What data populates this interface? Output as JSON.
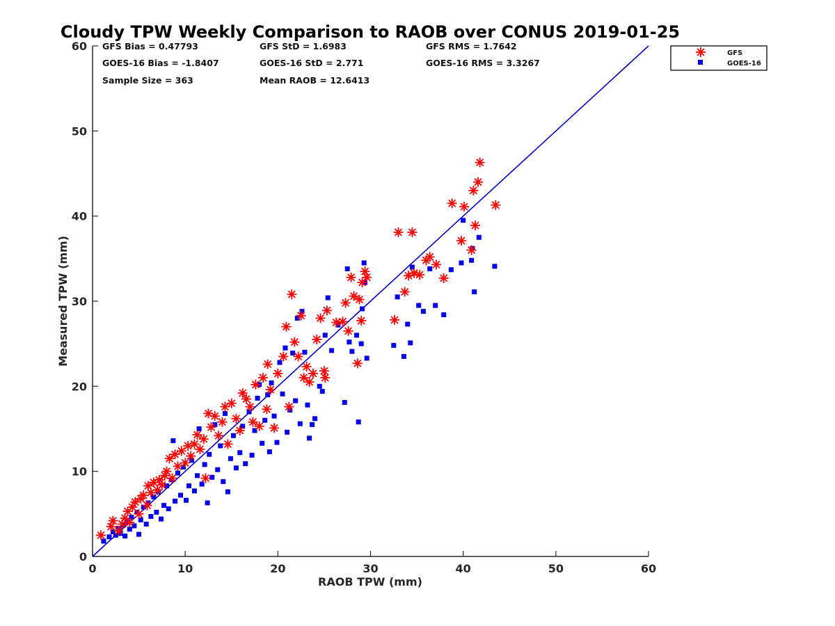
{
  "chart_data": {
    "type": "scatter",
    "title": "Cloudy TPW Weekly Comparison to RAOB over CONUS 2019-01-25",
    "xlabel": "RAOB TPW (mm)",
    "ylabel": "Measured TPW (mm)",
    "xlim": [
      0,
      60
    ],
    "ylim": [
      0,
      60
    ],
    "xticks": [
      "0",
      "10",
      "20",
      "30",
      "40",
      "50",
      "60"
    ],
    "yticks": [
      "0",
      "10",
      "20",
      "30",
      "40",
      "50",
      "60"
    ],
    "grid": false,
    "legend_position": "top-right-outside",
    "stats": {
      "gfs_bias": "GFS Bias = 0.47793",
      "gfs_std": "GFS StD = 1.6983",
      "gfs_rms": "GFS RMS = 1.7642",
      "goes_bias": "GOES-16 Bias = -1.8407",
      "goes_std": "GOES-16 StD = 2.771",
      "goes_rms": "GOES-16 RMS = 3.3267",
      "sample_size": "Sample Size = 363",
      "mean_raob": "Mean RAOB = 12.6413"
    },
    "reference_line": {
      "x": [
        0,
        60
      ],
      "y": [
        0,
        60
      ],
      "color": "#0000cc"
    },
    "series": [
      {
        "name": "GFS",
        "marker": "asterisk",
        "color": "#ff0000",
        "points": [
          [
            0.9,
            2.5
          ],
          [
            2.0,
            3.5
          ],
          [
            2.2,
            4.2
          ],
          [
            2.8,
            3.0
          ],
          [
            3.2,
            3.8
          ],
          [
            3.5,
            4.5
          ],
          [
            3.8,
            5.3
          ],
          [
            4.0,
            4.0
          ],
          [
            4.3,
            5.8
          ],
          [
            4.6,
            6.4
          ],
          [
            5.0,
            5.0
          ],
          [
            5.2,
            6.8
          ],
          [
            5.5,
            7.2
          ],
          [
            5.9,
            6.0
          ],
          [
            6.0,
            8.3
          ],
          [
            6.3,
            7.5
          ],
          [
            6.6,
            8.7
          ],
          [
            7.0,
            7.8
          ],
          [
            7.2,
            9.0
          ],
          [
            7.5,
            8.4
          ],
          [
            7.8,
            9.5
          ],
          [
            8.0,
            10.0
          ],
          [
            8.3,
            11.5
          ],
          [
            8.6,
            9.2
          ],
          [
            8.9,
            12.0
          ],
          [
            9.2,
            10.6
          ],
          [
            9.6,
            12.4
          ],
          [
            10.0,
            11.0
          ],
          [
            10.3,
            13.0
          ],
          [
            10.6,
            11.8
          ],
          [
            11.0,
            13.2
          ],
          [
            11.3,
            14.3
          ],
          [
            11.6,
            12.6
          ],
          [
            12.0,
            13.8
          ],
          [
            12.2,
            9.2
          ],
          [
            12.5,
            16.8
          ],
          [
            12.8,
            15.2
          ],
          [
            13.2,
            16.5
          ],
          [
            13.6,
            14.2
          ],
          [
            14.0,
            15.8
          ],
          [
            14.3,
            17.6
          ],
          [
            14.6,
            13.2
          ],
          [
            15.0,
            18.0
          ],
          [
            15.5,
            16.2
          ],
          [
            15.9,
            14.8
          ],
          [
            16.2,
            19.2
          ],
          [
            16.6,
            18.5
          ],
          [
            17.0,
            17.6
          ],
          [
            17.3,
            15.8
          ],
          [
            17.6,
            20.2
          ],
          [
            18.0,
            15.3
          ],
          [
            18.4,
            21.0
          ],
          [
            18.8,
            17.3
          ],
          [
            18.9,
            22.6
          ],
          [
            19.2,
            19.6
          ],
          [
            19.6,
            15.1
          ],
          [
            20.0,
            21.5
          ],
          [
            20.6,
            23.5
          ],
          [
            20.9,
            27.0
          ],
          [
            21.2,
            17.6
          ],
          [
            21.5,
            30.8
          ],
          [
            21.8,
            25.2
          ],
          [
            22.2,
            23.5
          ],
          [
            22.5,
            28.3
          ],
          [
            22.8,
            21.0
          ],
          [
            23.1,
            22.3
          ],
          [
            23.4,
            20.5
          ],
          [
            23.8,
            21.5
          ],
          [
            24.2,
            25.5
          ],
          [
            24.6,
            28.0
          ],
          [
            25.0,
            21.8
          ],
          [
            25.1,
            21.0
          ],
          [
            25.3,
            28.9
          ],
          [
            26.3,
            27.5
          ],
          [
            27.0,
            27.6
          ],
          [
            27.3,
            29.8
          ],
          [
            27.6,
            26.5
          ],
          [
            27.9,
            32.8
          ],
          [
            28.2,
            30.6
          ],
          [
            28.6,
            22.7
          ],
          [
            28.8,
            30.2
          ],
          [
            29.0,
            27.7
          ],
          [
            29.1,
            32.2
          ],
          [
            29.4,
            33.5
          ],
          [
            29.6,
            32.8
          ],
          [
            32.6,
            27.8
          ],
          [
            33.0,
            38.1
          ],
          [
            33.7,
            31.1
          ],
          [
            34.1,
            33.0
          ],
          [
            34.5,
            38.1
          ],
          [
            34.7,
            33.3
          ],
          [
            35.3,
            33.1
          ],
          [
            36.0,
            34.8
          ],
          [
            36.4,
            35.2
          ],
          [
            37.1,
            34.3
          ],
          [
            37.9,
            32.7
          ],
          [
            38.8,
            41.5
          ],
          [
            39.8,
            37.1
          ],
          [
            40.1,
            41.1
          ],
          [
            40.9,
            36.0
          ],
          [
            41.1,
            43.0
          ],
          [
            41.3,
            38.9
          ],
          [
            41.6,
            44.0
          ],
          [
            41.8,
            46.3
          ],
          [
            43.5,
            41.3
          ]
        ]
      },
      {
        "name": "GOES-16",
        "marker": "square",
        "color": "#0000ee",
        "points": [
          [
            1.2,
            1.8
          ],
          [
            1.8,
            2.3
          ],
          [
            2.2,
            2.9
          ],
          [
            2.5,
            2.5
          ],
          [
            2.8,
            3.3
          ],
          [
            3.0,
            2.7
          ],
          [
            3.3,
            3.7
          ],
          [
            3.5,
            2.4
          ],
          [
            3.8,
            4.1
          ],
          [
            4.0,
            3.2
          ],
          [
            4.2,
            4.6
          ],
          [
            4.5,
            3.6
          ],
          [
            4.8,
            5.2
          ],
          [
            5.0,
            2.6
          ],
          [
            5.2,
            4.3
          ],
          [
            5.5,
            5.8
          ],
          [
            5.8,
            3.8
          ],
          [
            6.0,
            6.3
          ],
          [
            6.3,
            4.7
          ],
          [
            6.6,
            7.0
          ],
          [
            6.9,
            5.2
          ],
          [
            7.1,
            7.6
          ],
          [
            7.4,
            4.4
          ],
          [
            7.7,
            6.0
          ],
          [
            8.0,
            8.3
          ],
          [
            8.2,
            5.6
          ],
          [
            8.5,
            9.0
          ],
          [
            8.7,
            13.6
          ],
          [
            8.9,
            6.5
          ],
          [
            9.2,
            9.8
          ],
          [
            9.5,
            7.2
          ],
          [
            9.8,
            10.5
          ],
          [
            10.1,
            6.6
          ],
          [
            10.4,
            8.3
          ],
          [
            10.7,
            11.3
          ],
          [
            11.0,
            7.7
          ],
          [
            11.3,
            9.5
          ],
          [
            11.5,
            15.0
          ],
          [
            11.8,
            8.5
          ],
          [
            12.1,
            10.8
          ],
          [
            12.4,
            6.3
          ],
          [
            12.6,
            12.0
          ],
          [
            12.9,
            9.3
          ],
          [
            13.2,
            15.5
          ],
          [
            13.5,
            10.2
          ],
          [
            13.8,
            13.0
          ],
          [
            14.1,
            8.8
          ],
          [
            14.3,
            16.8
          ],
          [
            14.6,
            7.6
          ],
          [
            14.9,
            11.5
          ],
          [
            15.2,
            14.2
          ],
          [
            15.5,
            10.4
          ],
          [
            15.9,
            12.2
          ],
          [
            16.2,
            15.3
          ],
          [
            16.5,
            10.9
          ],
          [
            16.9,
            17.0
          ],
          [
            17.2,
            11.9
          ],
          [
            17.5,
            14.8
          ],
          [
            17.8,
            18.6
          ],
          [
            18.0,
            20.2
          ],
          [
            18.3,
            13.3
          ],
          [
            18.6,
            16.0
          ],
          [
            18.9,
            19.0
          ],
          [
            19.1,
            12.3
          ],
          [
            19.3,
            20.4
          ],
          [
            19.6,
            16.5
          ],
          [
            19.9,
            13.4
          ],
          [
            20.2,
            22.8
          ],
          [
            20.5,
            19.1
          ],
          [
            20.8,
            24.5
          ],
          [
            21.0,
            14.6
          ],
          [
            21.3,
            17.2
          ],
          [
            21.6,
            23.9
          ],
          [
            21.9,
            18.3
          ],
          [
            22.1,
            28.0
          ],
          [
            22.4,
            15.6
          ],
          [
            22.6,
            28.8
          ],
          [
            22.9,
            24.0
          ],
          [
            23.2,
            17.8
          ],
          [
            23.4,
            13.9
          ],
          [
            23.7,
            15.5
          ],
          [
            24.0,
            16.2
          ],
          [
            24.5,
            20.0
          ],
          [
            24.8,
            19.4
          ],
          [
            25.1,
            26.0
          ],
          [
            25.4,
            30.4
          ],
          [
            25.8,
            24.2
          ],
          [
            26.5,
            27.2
          ],
          [
            27.2,
            18.1
          ],
          [
            27.5,
            33.8
          ],
          [
            27.7,
            25.2
          ],
          [
            28.0,
            24.1
          ],
          [
            28.5,
            26.0
          ],
          [
            28.7,
            15.8
          ],
          [
            29.0,
            25.0
          ],
          [
            29.1,
            29.1
          ],
          [
            29.3,
            34.5
          ],
          [
            29.4,
            32.2
          ],
          [
            29.6,
            23.3
          ],
          [
            32.5,
            24.8
          ],
          [
            32.9,
            30.5
          ],
          [
            33.6,
            23.5
          ],
          [
            34.0,
            27.3
          ],
          [
            34.3,
            25.1
          ],
          [
            34.5,
            34.0
          ],
          [
            35.2,
            29.5
          ],
          [
            35.7,
            28.8
          ],
          [
            36.4,
            33.8
          ],
          [
            37.0,
            29.5
          ],
          [
            37.9,
            28.4
          ],
          [
            38.7,
            33.7
          ],
          [
            39.8,
            34.5
          ],
          [
            40.0,
            39.5
          ],
          [
            40.9,
            34.8
          ],
          [
            41.0,
            36.2
          ],
          [
            41.2,
            31.1
          ],
          [
            41.7,
            37.5
          ],
          [
            43.4,
            34.1
          ]
        ]
      }
    ]
  }
}
